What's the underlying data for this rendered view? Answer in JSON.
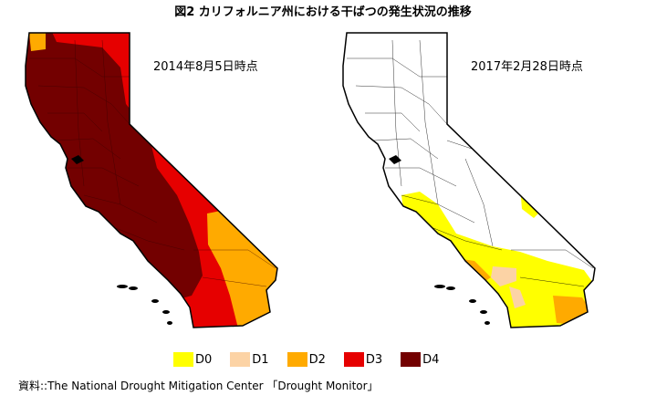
{
  "title": "図2 カリフォルニア州における干ばつの発生状況の推移",
  "maps": {
    "left": {
      "date": "2014年8月5日時点"
    },
    "right": {
      "date": "2017年2月28日時点"
    }
  },
  "legend": [
    {
      "label": "D0",
      "color": "#ffff00"
    },
    {
      "label": "D1",
      "color": "#fcd3a5"
    },
    {
      "label": "D2",
      "color": "#ffaa00"
    },
    {
      "label": "D3",
      "color": "#e60000"
    },
    {
      "label": "D4",
      "color": "#730000"
    }
  ],
  "source": "資料::The National Drought Mitigation Center 「Drought Monitor」"
}
